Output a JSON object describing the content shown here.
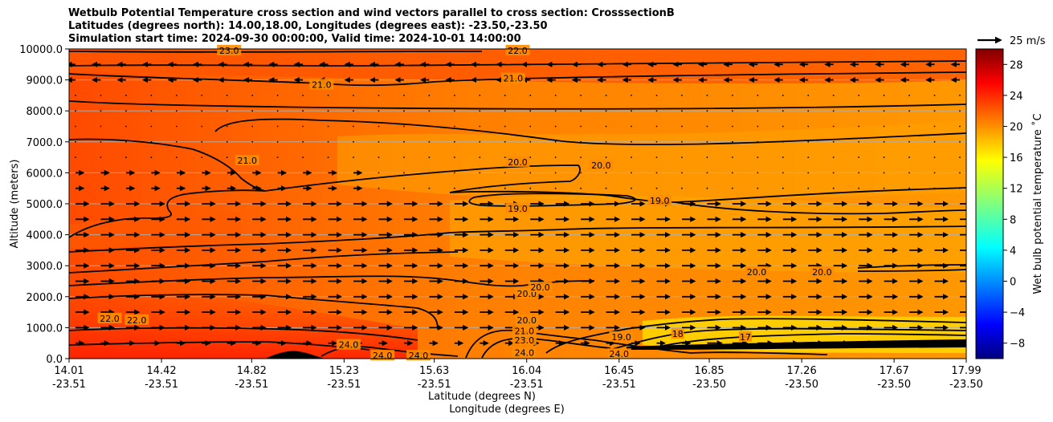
{
  "title_lines": [
    "Wetbulb Potential Temperature cross section and wind vectors parallel to cross section: CrosssectionB",
    "Latitudes (degrees north): 14.00,18.00, Longitudes (degrees east): -23.50,-23.50",
    "Simulation start time: 2024-09-30 00:00:00, Valid time: 2024-10-01 14:00:00"
  ],
  "chart_data": {
    "type": "heatmap",
    "ylabel": "Altitude (meters)",
    "xlabel_lat": "Latitude (degrees N)",
    "xlabel_lon": "Longitude (degrees E)",
    "ylim": [
      0,
      10000
    ],
    "y_ticks": [
      "0.0",
      "1000.0",
      "2000.0",
      "3000.0",
      "4000.0",
      "5000.0",
      "6000.0",
      "7000.0",
      "8000.0",
      "9000.0",
      "10000.0"
    ],
    "y_tick_values": [
      0,
      1000,
      2000,
      3000,
      4000,
      5000,
      6000,
      7000,
      8000,
      9000,
      10000
    ],
    "xlim": [
      14.01,
      17.99
    ],
    "x_tick_values": [
      14.01,
      14.42,
      14.82,
      15.23,
      15.63,
      16.04,
      16.45,
      16.85,
      17.26,
      17.67,
      17.99
    ],
    "x_ticks_lat": [
      "14.01",
      "14.42",
      "14.82",
      "15.23",
      "15.63",
      "16.04",
      "16.45",
      "16.85",
      "17.26",
      "17.67",
      "17.99"
    ],
    "x_ticks_lon": [
      "-23.51",
      "-23.51",
      "-23.51",
      "-23.51",
      "-23.51",
      "-23.51",
      "-23.51",
      "-23.50",
      "-23.50",
      "-23.50",
      "-23.50"
    ],
    "grid": "horizontal",
    "colorbar": {
      "label": "Wet bulb potential temperature $^\\circ$C",
      "label_display": "Wet bulb potential temperature ˚C",
      "range": [
        -10,
        30
      ],
      "ticks": [
        "28",
        "24",
        "20",
        "16",
        "12",
        "8",
        "4",
        "0",
        "−4",
        "−8"
      ],
      "tick_values": [
        28,
        24,
        20,
        16,
        12,
        8,
        4,
        0,
        -4,
        -8
      ],
      "colormap": "jet"
    },
    "quiver_key": {
      "label": "25 m/s",
      "speed": 25
    },
    "contour_labels": [
      {
        "text": "23.0",
        "lat": 14.72,
        "alt": 9950
      },
      {
        "text": "22.0",
        "lat": 16.0,
        "alt": 9950
      },
      {
        "text": "21.0",
        "lat": 15.13,
        "alt": 8850
      },
      {
        "text": "21.0",
        "lat": 15.98,
        "alt": 9050
      },
      {
        "text": "21.0",
        "lat": 14.8,
        "alt": 6400
      },
      {
        "text": "20.0",
        "lat": 16.0,
        "alt": 6350
      },
      {
        "text": "20.0",
        "lat": 16.37,
        "alt": 6250
      },
      {
        "text": "19.0",
        "lat": 16.0,
        "alt": 4850
      },
      {
        "text": "19.0",
        "lat": 16.63,
        "alt": 5100
      },
      {
        "text": "20.0",
        "lat": 16.04,
        "alt": 2100
      },
      {
        "text": "20.0",
        "lat": 16.1,
        "alt": 2300
      },
      {
        "text": "20.0",
        "lat": 17.06,
        "alt": 2800
      },
      {
        "text": "20.0",
        "lat": 17.35,
        "alt": 2800
      },
      {
        "text": "20.0",
        "lat": 16.04,
        "alt": 1250
      },
      {
        "text": "21.0",
        "lat": 16.03,
        "alt": 900
      },
      {
        "text": "23.0",
        "lat": 16.03,
        "alt": 600
      },
      {
        "text": "24.0",
        "lat": 16.03,
        "alt": 200
      },
      {
        "text": "22.0",
        "lat": 14.19,
        "alt": 1300
      },
      {
        "text": "22.0",
        "lat": 14.31,
        "alt": 1250
      },
      {
        "text": "24.0",
        "lat": 15.25,
        "alt": 450
      },
      {
        "text": "24.0",
        "lat": 15.4,
        "alt": 100
      },
      {
        "text": "24.0",
        "lat": 15.56,
        "alt": 100
      },
      {
        "text": "24.0",
        "lat": 16.45,
        "alt": 150
      },
      {
        "text": "19.0",
        "lat": 16.46,
        "alt": 700
      },
      {
        "text": "18",
        "lat": 16.71,
        "alt": 800
      },
      {
        "text": "17",
        "lat": 17.01,
        "alt": 700
      }
    ]
  }
}
